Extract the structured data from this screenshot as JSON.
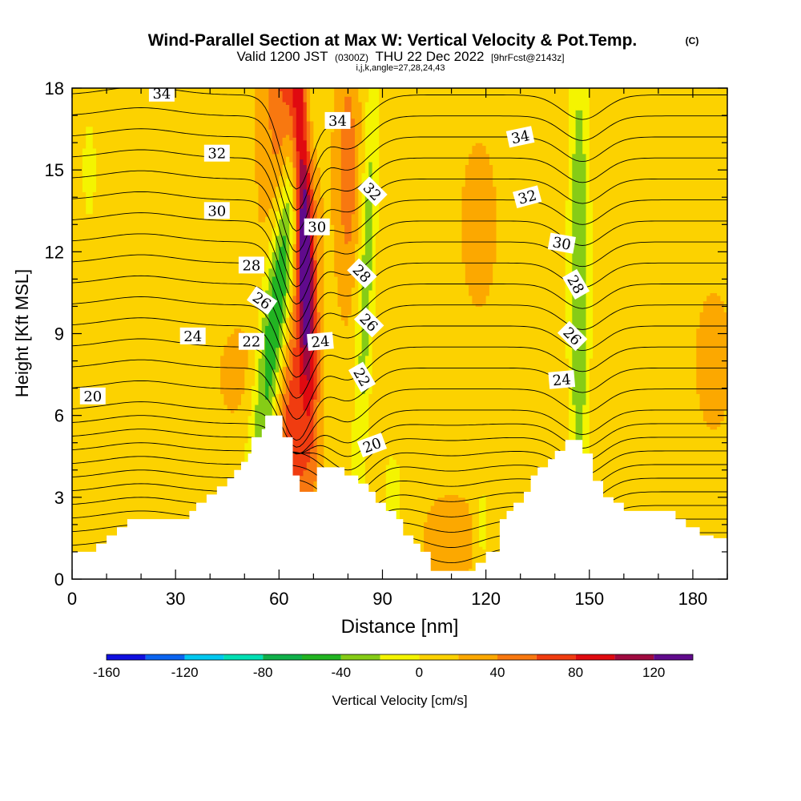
{
  "chart_data": {
    "type": "heatmap",
    "title": "Wind-Parallel Section at Max W: Vertical Velocity & Pot.Temp.",
    "title_mark": "(C)",
    "subtitle_main": "Valid 1200 JST",
    "subtitle_utc": "(0300Z)",
    "subtitle_date": "THU 22 Dec 2022",
    "subtitle_fcst": "[9hrFcst@2143z]",
    "subtitle_ijk": "i,j,k,angle=27,28,24,43",
    "xlabel": "Distance [nm]",
    "ylabel": "Height [Kft MSL]",
    "xlim": [
      0,
      190
    ],
    "ylim": [
      0,
      18
    ],
    "x_ticks": [
      "0",
      "30",
      "60",
      "90",
      "120",
      "150",
      "180"
    ],
    "y_ticks": [
      "0",
      "3",
      "6",
      "9",
      "12",
      "15",
      "18"
    ],
    "colorbar": {
      "label": "Vertical Velocity [cm/s]",
      "range": [
        -160,
        140
      ],
      "step": 20,
      "tick_labels": [
        "-160",
        "-120",
        "-80",
        "-40",
        "0",
        "40",
        "80",
        "120"
      ],
      "colors": [
        "#1010e0",
        "#0a64f0",
        "#00c8f0",
        "#00e0b4",
        "#10b04a",
        "#22b422",
        "#86cc16",
        "#f4f400",
        "#fcd200",
        "#fca800",
        "#f87810",
        "#f03c10",
        "#e00a10",
        "#a00a40",
        "#600a8c"
      ]
    },
    "terrain": [
      [
        0,
        1
      ],
      [
        7,
        1
      ],
      [
        7,
        1.3
      ],
      [
        10,
        1.3
      ],
      [
        10,
        1.6
      ],
      [
        13,
        1.6
      ],
      [
        13,
        1.9
      ],
      [
        16,
        1.9
      ],
      [
        16,
        2.2
      ],
      [
        34,
        2.2
      ],
      [
        34,
        2.5
      ],
      [
        36,
        2.5
      ],
      [
        36,
        2.8
      ],
      [
        39,
        2.8
      ],
      [
        39,
        3.1
      ],
      [
        42,
        3.1
      ],
      [
        42,
        3.4
      ],
      [
        45,
        3.4
      ],
      [
        45,
        3.7
      ],
      [
        47,
        3.7
      ],
      [
        47,
        4
      ],
      [
        49,
        4
      ],
      [
        49,
        4.3
      ],
      [
        51,
        4.3
      ],
      [
        51,
        4.6
      ],
      [
        52,
        4.6
      ],
      [
        52,
        5.2
      ],
      [
        55,
        5.2
      ],
      [
        55,
        5.5
      ],
      [
        56,
        5.5
      ],
      [
        56,
        6
      ],
      [
        61,
        6
      ],
      [
        61,
        5.2
      ],
      [
        64,
        5.2
      ],
      [
        64,
        3.8
      ],
      [
        66,
        3.8
      ],
      [
        66,
        3.2
      ],
      [
        71,
        3.2
      ],
      [
        71,
        4.1
      ],
      [
        79,
        4.1
      ],
      [
        79,
        3.8
      ],
      [
        83,
        3.8
      ],
      [
        83,
        3.5
      ],
      [
        86,
        3.5
      ],
      [
        86,
        3.2
      ],
      [
        88,
        3.2
      ],
      [
        88,
        2.8
      ],
      [
        91,
        2.8
      ],
      [
        91,
        2.5
      ],
      [
        94,
        2.5
      ],
      [
        94,
        2.2
      ],
      [
        96,
        2.2
      ],
      [
        96,
        1.6
      ],
      [
        99,
        1.6
      ],
      [
        99,
        1.3
      ],
      [
        101,
        1.3
      ],
      [
        101,
        1
      ],
      [
        104,
        1
      ],
      [
        104,
        0.3
      ],
      [
        117,
        0.3
      ],
      [
        117,
        0.6
      ],
      [
        120,
        0.6
      ],
      [
        120,
        1
      ],
      [
        124,
        1
      ],
      [
        124,
        2.2
      ],
      [
        126,
        2.2
      ],
      [
        126,
        2.5
      ],
      [
        128,
        2.5
      ],
      [
        128,
        2.8
      ],
      [
        131,
        2.8
      ],
      [
        131,
        3.2
      ],
      [
        133,
        3.2
      ],
      [
        133,
        3.8
      ],
      [
        135,
        3.8
      ],
      [
        135,
        4.1
      ],
      [
        138,
        4.1
      ],
      [
        138,
        4.4
      ],
      [
        140,
        4.4
      ],
      [
        140,
        4.7
      ],
      [
        143,
        4.7
      ],
      [
        143,
        5.1
      ],
      [
        148,
        5.1
      ],
      [
        148,
        4.6
      ],
      [
        151,
        4.6
      ],
      [
        151,
        3.6
      ],
      [
        154,
        3.6
      ],
      [
        154,
        3
      ],
      [
        157,
        3
      ],
      [
        157,
        2.8
      ],
      [
        160,
        2.8
      ],
      [
        160,
        2.5
      ],
      [
        175,
        2.5
      ],
      [
        175,
        2.2
      ],
      [
        178,
        2.2
      ],
      [
        178,
        1.9
      ],
      [
        182,
        1.9
      ],
      [
        182,
        1.6
      ],
      [
        186,
        1.6
      ],
      [
        186,
        1.5
      ],
      [
        190,
        1.5
      ]
    ],
    "theta_levels": [
      10,
      11,
      12,
      13,
      14,
      15,
      16,
      17,
      18,
      19,
      20,
      21,
      22,
      23,
      24,
      25,
      26,
      27,
      28,
      29,
      30,
      31,
      32,
      33,
      34,
      35
    ],
    "contour_labels": [
      {
        "text": "34",
        "x": 26,
        "y": 17.8,
        "angle": 0
      },
      {
        "text": "34",
        "x": 77,
        "y": 16.8,
        "angle": 0
      },
      {
        "text": "34",
        "x": 130,
        "y": 16.2,
        "angle": -12
      },
      {
        "text": "32",
        "x": 42,
        "y": 15.6,
        "angle": 0
      },
      {
        "text": "32",
        "x": 87,
        "y": 14.2,
        "angle": 45
      },
      {
        "text": "32",
        "x": 132,
        "y": 14.0,
        "angle": -15
      },
      {
        "text": "30",
        "x": 42,
        "y": 13.5,
        "angle": 0
      },
      {
        "text": "30",
        "x": 71,
        "y": 12.9,
        "angle": 0
      },
      {
        "text": "30",
        "x": 142,
        "y": 12.3,
        "angle": 10
      },
      {
        "text": "28",
        "x": 52,
        "y": 11.5,
        "angle": 0
      },
      {
        "text": "28",
        "x": 84,
        "y": 11.2,
        "angle": 45
      },
      {
        "text": "28",
        "x": 146,
        "y": 10.8,
        "angle": 60
      },
      {
        "text": "26",
        "x": 55,
        "y": 10.2,
        "angle": 35
      },
      {
        "text": "26",
        "x": 86,
        "y": 9.4,
        "angle": 45
      },
      {
        "text": "26",
        "x": 145,
        "y": 8.9,
        "angle": 45
      },
      {
        "text": "24",
        "x": 35,
        "y": 8.9,
        "angle": 0
      },
      {
        "text": "24",
        "x": 72,
        "y": 8.7,
        "angle": -5
      },
      {
        "text": "24",
        "x": 142,
        "y": 7.3,
        "angle": -5
      },
      {
        "text": "22",
        "x": 52,
        "y": 8.7,
        "angle": 0
      },
      {
        "text": "22",
        "x": 84,
        "y": 7.4,
        "angle": 60
      },
      {
        "text": "20",
        "x": 6,
        "y": 6.7,
        "angle": 0
      },
      {
        "text": "20",
        "x": 87,
        "y": 4.9,
        "angle": -20
      }
    ]
  }
}
